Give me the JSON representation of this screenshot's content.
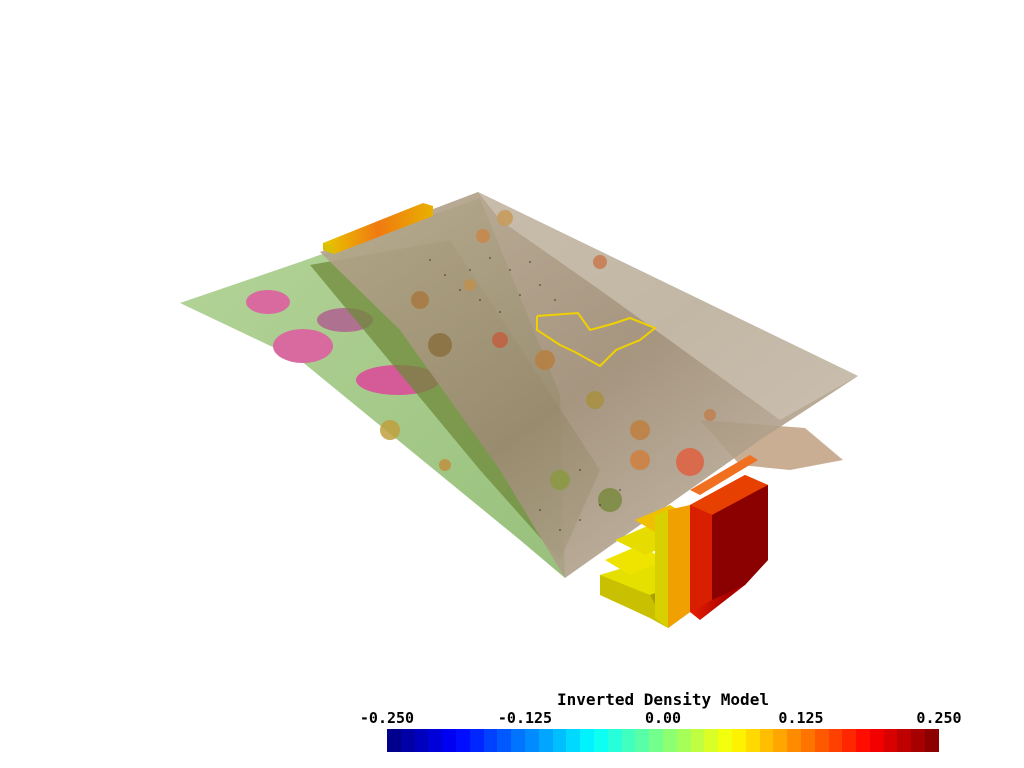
{
  "scene": {
    "model_block_colors": {
      "dark_red": "#8b0000",
      "red": "#d40000",
      "orange_red": "#e8400a",
      "orange": "#f08a00",
      "yellow": "#d8d200",
      "olive": "#a8a000"
    },
    "map_colors": {
      "light_green": "#a9cf8a",
      "green": "#7fae58",
      "olive_green": "#6f8a3a",
      "pink": "#d86aa0",
      "magenta": "#c8508a",
      "tan": "#9c8c78",
      "light_tan": "#c9bcaa",
      "grey": "#b8b0a8"
    }
  },
  "colorbar": {
    "title": "Inverted Density Model",
    "ticks": [
      "-0.250",
      "-0.125",
      "0.00",
      "0.125",
      "0.250"
    ],
    "tick_values": [
      -0.25,
      -0.125,
      0.0,
      0.125,
      0.25
    ],
    "range": [
      -0.25,
      0.25
    ],
    "colormap": "jet",
    "segments": 40
  }
}
